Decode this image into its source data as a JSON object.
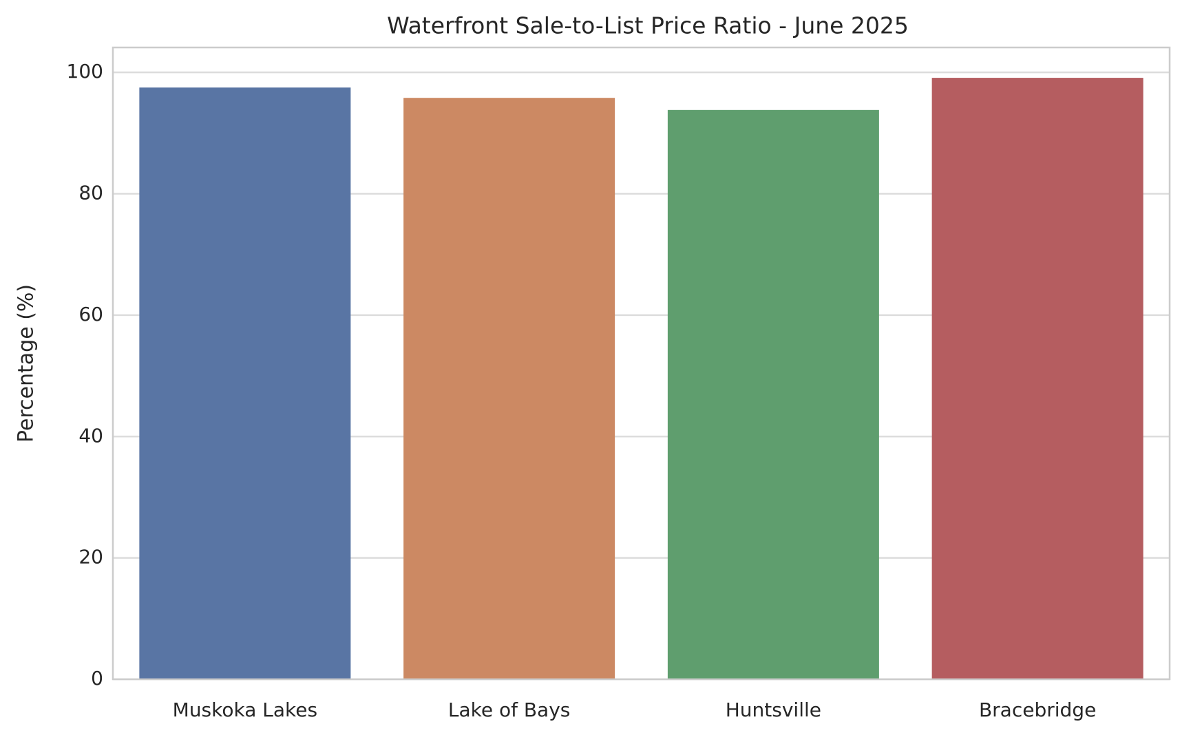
{
  "chart_data": {
    "type": "bar",
    "title": "Waterfront Sale-to-List Price Ratio - June 2025",
    "y_label": "Percentage (%)",
    "categories": [
      "Muskoka Lakes",
      "Lake of Bays",
      "Huntsville",
      "Bracebridge"
    ],
    "values": [
      97.5,
      95.8,
      93.8,
      99.1
    ],
    "colors": [
      "#5975a4",
      "#cc8963",
      "#5f9e6e",
      "#b55d60"
    ],
    "ylim": [
      0,
      104.1
    ],
    "yticks": [
      0,
      20,
      40,
      60,
      80,
      100
    ],
    "grid": true
  }
}
